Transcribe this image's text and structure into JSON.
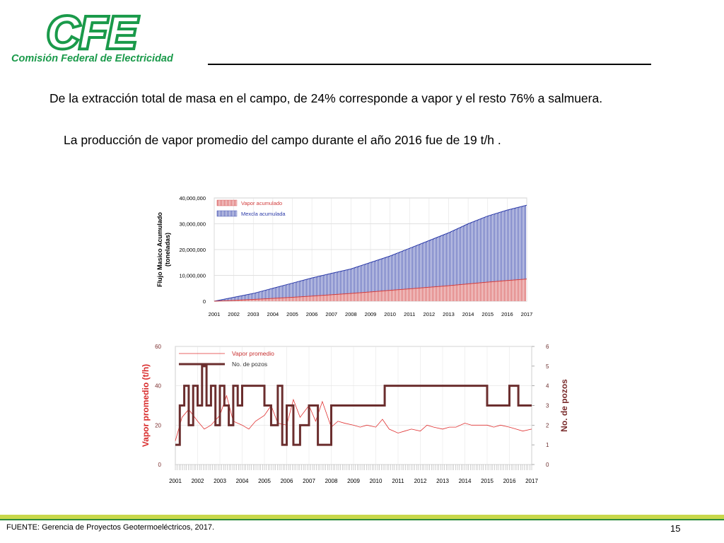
{
  "header": {
    "logo_text": "CFE",
    "logo_subtitle": "Comisión Federal de Electricidad",
    "brand_color": "#1a9a4a"
  },
  "body": {
    "paragraph1": "De la extracción total de masa en el campo, de 24% corresponde a vapor y el resto 76% a salmuera.",
    "paragraph2": "La producción de vapor promedio del campo durante el año 2016 fue de  19 t/h ."
  },
  "chart_data": [
    {
      "type": "area",
      "title": "",
      "ylabel": "Flujo Masico Acumulado\n(toneladas)",
      "ylabel_lines": [
        "Flujo Masico Acumulado",
        "(toneladas)"
      ],
      "xlabel": "",
      "xlim": [
        2001,
        2017
      ],
      "ylim": [
        0,
        40000000
      ],
      "y_ticks": [
        "0",
        "10,000,000",
        "20,000,000",
        "30,000,000",
        "40,000,000"
      ],
      "x_ticks": [
        "2001",
        "2002",
        "2003",
        "2004",
        "2005",
        "2006",
        "2007",
        "2008",
        "2009",
        "2010",
        "2011",
        "2012",
        "2013",
        "2014",
        "2015",
        "2016",
        "2017"
      ],
      "legend_position": "top-left",
      "x": [
        2001,
        2002,
        2003,
        2004,
        2005,
        2006,
        2007,
        2008,
        2009,
        2010,
        2011,
        2012,
        2013,
        2014,
        2015,
        2016,
        2017
      ],
      "series": [
        {
          "name": "Vapor acumulado",
          "color": "#d23c3c",
          "values": [
            0,
            300000,
            700000,
            1100000,
            1500000,
            2000000,
            2500000,
            3000000,
            3600000,
            4200000,
            4800000,
            5400000,
            6000000,
            6700000,
            7400000,
            8000000,
            8600000
          ]
        },
        {
          "name": "Mexcla acumulada",
          "color": "#2b3aa8",
          "values": [
            0,
            1500000,
            3000000,
            5000000,
            7000000,
            9000000,
            10800000,
            12500000,
            15000000,
            17500000,
            20500000,
            23500000,
            26500000,
            30000000,
            33000000,
            35300000,
            37200000
          ]
        }
      ]
    },
    {
      "type": "line",
      "title": "",
      "ylabel": "Vapor promedio (t/h)",
      "y2label": "No. de pozos",
      "xlim": [
        2001,
        2017
      ],
      "ylim": [
        0,
        60
      ],
      "y2lim": [
        0,
        6
      ],
      "y_ticks": [
        "0",
        "20",
        "40",
        "60"
      ],
      "y2_ticks": [
        "0",
        "1",
        "2",
        "3",
        "4",
        "5",
        "6"
      ],
      "x_ticks": [
        "2001",
        "2002",
        "2003",
        "2004",
        "2005",
        "2006",
        "2007",
        "2008",
        "2009",
        "2010",
        "2011",
        "2012",
        "2013",
        "2014",
        "2015",
        "2016",
        "2017"
      ],
      "legend_position": "top-left",
      "series": [
        {
          "name": "Vapor promedio",
          "color": "#e03030",
          "axis": "left",
          "x": [
            2001,
            2001.3,
            2001.6,
            2002,
            2002.3,
            2002.6,
            2003,
            2003.3,
            2003.6,
            2004,
            2004.3,
            2004.6,
            2005,
            2005.3,
            2005.6,
            2006,
            2006.3,
            2006.6,
            2007,
            2007.3,
            2007.6,
            2008,
            2008.3,
            2008.6,
            2009,
            2009.3,
            2009.6,
            2010,
            2010.3,
            2010.6,
            2011,
            2011.3,
            2011.6,
            2012,
            2012.3,
            2012.6,
            2013,
            2013.3,
            2013.6,
            2014,
            2014.3,
            2014.6,
            2015,
            2015.3,
            2015.6,
            2016,
            2016.3,
            2016.6,
            2017
          ],
          "values": [
            12,
            24,
            28,
            22,
            18,
            20,
            25,
            35,
            22,
            20,
            18,
            22,
            25,
            30,
            21,
            20,
            33,
            24,
            30,
            22,
            32,
            19,
            22,
            21,
            20,
            19,
            20,
            19,
            23,
            18,
            16,
            17,
            18,
            17,
            20,
            19,
            18,
            19,
            19,
            21,
            20,
            20,
            20,
            19,
            20,
            19,
            18,
            17,
            18
          ]
        },
        {
          "name": "No. de pozos",
          "color": "#6b2e2e",
          "axis": "right",
          "x": [
            2001,
            2001.2,
            2001.4,
            2001.6,
            2001.8,
            2002,
            2002.2,
            2002.4,
            2002.6,
            2002.8,
            2003,
            2003.2,
            2003.4,
            2003.6,
            2003.8,
            2004,
            2004.3,
            2004.6,
            2005,
            2005.3,
            2005.6,
            2005.8,
            2006,
            2006.3,
            2006.6,
            2007,
            2007.4,
            2007.8,
            2008,
            2008.5,
            2009,
            2009.5,
            2010,
            2010.4,
            2010.8,
            2011,
            2011.5,
            2012,
            2012.5,
            2013,
            2013.5,
            2014,
            2014.5,
            2015,
            2015.5,
            2016,
            2016.4,
            2016.8,
            2017
          ],
          "values": [
            1,
            3,
            4,
            2,
            4,
            3,
            5,
            3,
            4,
            2,
            4,
            3,
            2,
            4,
            3,
            4,
            4,
            4,
            3,
            2,
            4,
            1,
            3,
            1,
            2,
            3,
            1,
            1,
            3,
            3,
            3,
            3,
            3,
            4,
            4,
            4,
            4,
            4,
            4,
            4,
            4,
            4,
            4,
            3,
            3,
            4,
            3,
            3,
            3
          ]
        }
      ]
    }
  ],
  "footer": {
    "source": "FUENTE: Gerencia de Proyectos Geotermoeléctricos, 2017.",
    "page_number": "15",
    "bar_color": "#c8d84a",
    "line_color": "#2e8b3c"
  }
}
